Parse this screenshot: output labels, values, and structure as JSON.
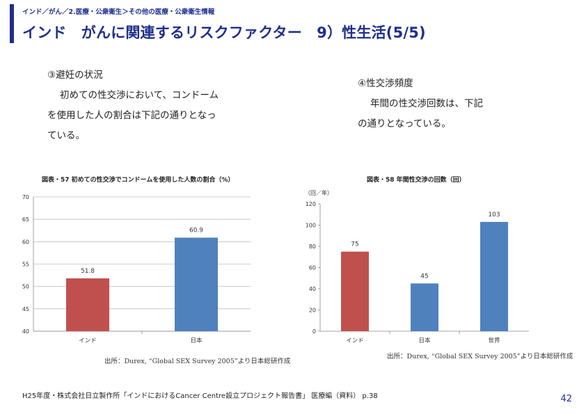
{
  "header": {
    "breadcrumb": "インド／がん／2.医療・公衆衛生＞その他の医療・公衆衛生情報",
    "title": "インド　がんに関連するリスクファクター　9）性生活(5/5)"
  },
  "section_left": {
    "heading": "③避妊の状況",
    "lines": [
      "初めての性交渉において、コンドーム",
      "を使用した人の割合は下記の通りとなっ",
      "ている。"
    ]
  },
  "section_right": {
    "heading": "④性交渉頻度",
    "lines": [
      "年間の性交渉回数は、下記",
      "の通りとなっている。"
    ]
  },
  "charts": [
    {
      "caption": "図表・57  初めての性交渉でコンドームを使用した人数の割合（%）",
      "source": "出所：Durex, “Global SEX Survey 2005”より日本総研作成",
      "colors": [
        "#c0504d",
        "#4f81bd"
      ],
      "chart_data": {
        "type": "bar",
        "categories": [
          "インド",
          "日本"
        ],
        "values": [
          51.8,
          60.9
        ],
        "value_labels": [
          "51.8",
          "60.9"
        ],
        "ylim": [
          40,
          70
        ],
        "yticks": [
          40,
          45,
          50,
          55,
          60,
          65,
          70
        ],
        "ytick_labels": [
          "40",
          "45",
          "50",
          "55",
          "60",
          "65",
          "70"
        ],
        "ylabel": "",
        "grid": true
      }
    },
    {
      "caption": "図表・58  年間性交渉の回数（回）",
      "source": "出所：Durex, “Global SEX Survey 2005”より日本総研作成",
      "colors": [
        "#c0504d",
        "#4f81bd",
        "#4f81bd"
      ],
      "chart_data": {
        "type": "bar",
        "categories": [
          "インド",
          "日本",
          "世界"
        ],
        "values": [
          75,
          45,
          103
        ],
        "value_labels": [
          "75",
          "45",
          "103"
        ],
        "ylim": [
          0,
          120
        ],
        "yticks": [
          0,
          20,
          40,
          60,
          80,
          100,
          120
        ],
        "ytick_labels": [
          "0",
          "20",
          "40",
          "60",
          "80",
          "100",
          "120"
        ],
        "ylabel": "（回／年）",
        "grid": false
      }
    }
  ],
  "footer": {
    "citation": "H25年度・株式会社日立製作所「インドにおけるCancer Centre設立プロジェクト報告書」 医療編（資料） p.38",
    "page": "42"
  }
}
